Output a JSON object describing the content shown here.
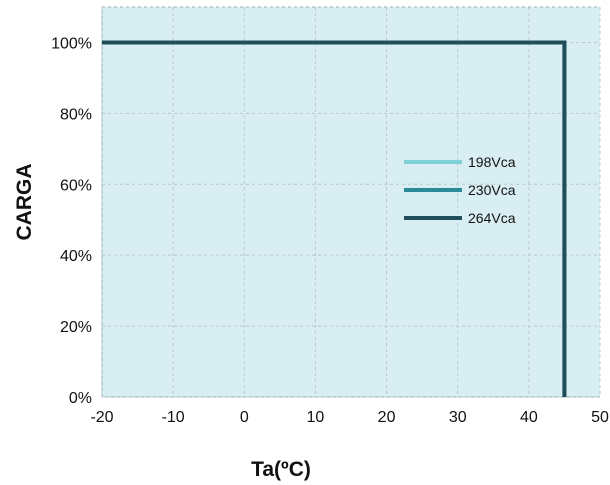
{
  "chart_data": {
    "type": "line",
    "xlabel": "Ta(ºC)",
    "ylabel": "CARGA",
    "xlim": [
      -20,
      50
    ],
    "ylim": [
      0,
      1.1
    ],
    "x_ticks": [
      -20,
      -10,
      0,
      10,
      20,
      30,
      40,
      50
    ],
    "y_ticks": [
      {
        "value": 0,
        "label": "0%"
      },
      {
        "value": 0.2,
        "label": "20%"
      },
      {
        "value": 0.4,
        "label": "40%"
      },
      {
        "value": 0.6,
        "label": "60%"
      },
      {
        "value": 0.8,
        "label": "80%"
      },
      {
        "value": 1.0,
        "label": "100%"
      }
    ],
    "grid": true,
    "legend_position": "center-right",
    "series": [
      {
        "name": "198Vca",
        "color": "#7fd1d8",
        "x": [
          -20,
          45,
          45
        ],
        "y": [
          1.0,
          1.0,
          0
        ]
      },
      {
        "name": "230Vca",
        "color": "#2a8a98",
        "x": [
          -20,
          45,
          45
        ],
        "y": [
          1.0,
          1.0,
          0
        ]
      },
      {
        "name": "264Vca",
        "color": "#1f4e5a",
        "x": [
          -20,
          45,
          45
        ],
        "y": [
          1.0,
          1.0,
          0
        ]
      }
    ],
    "colors": {
      "plot_background": "#d9eef3",
      "grid": "#b5c9ce"
    }
  }
}
